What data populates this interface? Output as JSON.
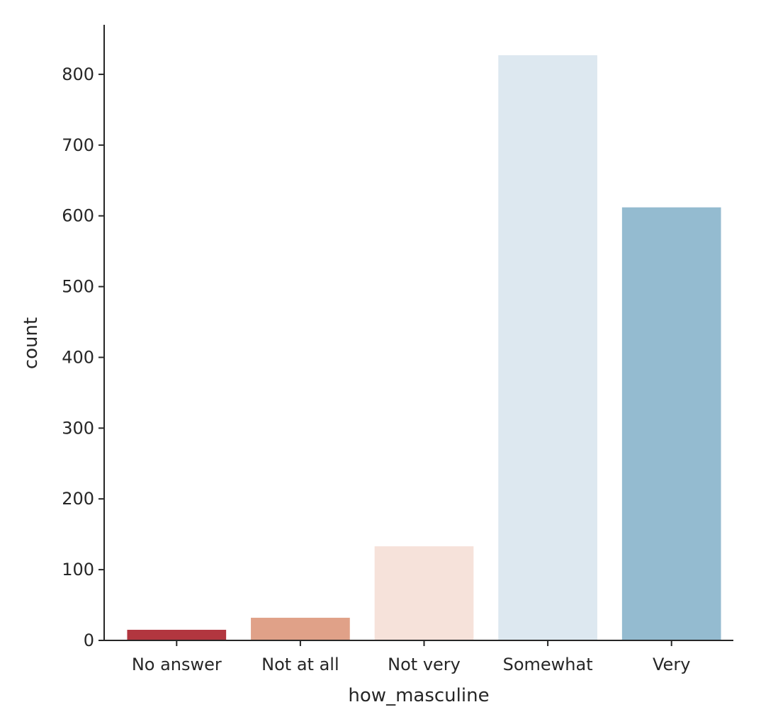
{
  "chart_data": {
    "type": "bar",
    "title": "",
    "xlabel": "how_masculine",
    "ylabel": "count",
    "categories": [
      "No answer",
      "Not at all",
      "Not very",
      "Somewhat",
      "Very"
    ],
    "values": [
      15,
      32,
      133,
      827,
      612
    ],
    "colors": [
      "#b2363f",
      "#e0a188",
      "#f6e2da",
      "#dde8f0",
      "#94bbd0"
    ],
    "ylim": [
      0,
      870
    ],
    "yticks": [
      0,
      100,
      200,
      300,
      400,
      500,
      600,
      700,
      800
    ],
    "grid": false,
    "legend": "none"
  }
}
